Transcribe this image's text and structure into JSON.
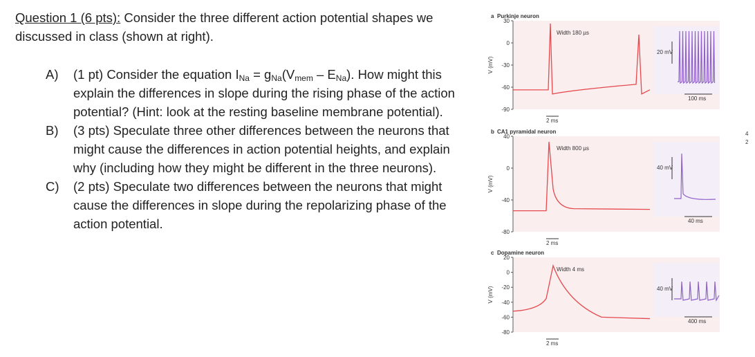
{
  "question": {
    "title": "Question 1 (6 pts):",
    "text": " Consider the three different action potential shapes we discussed in class (shown at right)."
  },
  "parts": [
    {
      "label": "A)",
      "segments": [
        {
          "text": "(1 pt) Consider the equation I"
        },
        {
          "sub": "Na"
        },
        {
          "text": " = g"
        },
        {
          "sub": "Na"
        },
        {
          "text": "(V"
        },
        {
          "sub": "mem"
        },
        {
          "text": " – E"
        },
        {
          "sub": "Na"
        },
        {
          "text": "). How might this explain the differences in slope during the rising phase of the action potential? (Hint: look at the resting baseline membrane potential)."
        }
      ]
    },
    {
      "label": "B)",
      "segments": [
        {
          "text": "(3 pts) Speculate three other differences between the neurons that might cause the differences in action potential heights, and explain why (including how they might be different in the three neurons)."
        }
      ]
    },
    {
      "label": "C)",
      "segments": [
        {
          "text": "(2 pts) Speculate two differences between the neurons that might cause the differences in slope during the repolarizing phase of the action potential."
        }
      ]
    }
  ],
  "figure": {
    "panels": [
      {
        "letter": "a",
        "title": "Purkinje neuron",
        "ylabel": "V (mV)",
        "yticks": [
          "30",
          "0",
          "-30",
          "-60",
          "-90"
        ],
        "width": "Width 180 µs",
        "amp": "20 mV",
        "time": "100 ms",
        "scale": "2 ms"
      },
      {
        "letter": "b",
        "title": "CA1 pyramidal neuron",
        "ylabel": "V (mV)",
        "yticks": [
          "40",
          "0",
          "-40",
          "-80"
        ],
        "width": "Width 800 µs",
        "amp": "40 mV",
        "time": "40 ms",
        "scale": "2 ms"
      },
      {
        "letter": "c",
        "title": "Dopamine neuron",
        "ylabel": "V (mV)",
        "yticks": [
          "20",
          "0",
          "-20",
          "-40",
          "-60",
          "-80"
        ],
        "width": "Width 4 ms",
        "amp": "40 mV",
        "time": "400 ms",
        "scale": "2 ms"
      }
    ],
    "edge": [
      "4",
      "2"
    ]
  }
}
